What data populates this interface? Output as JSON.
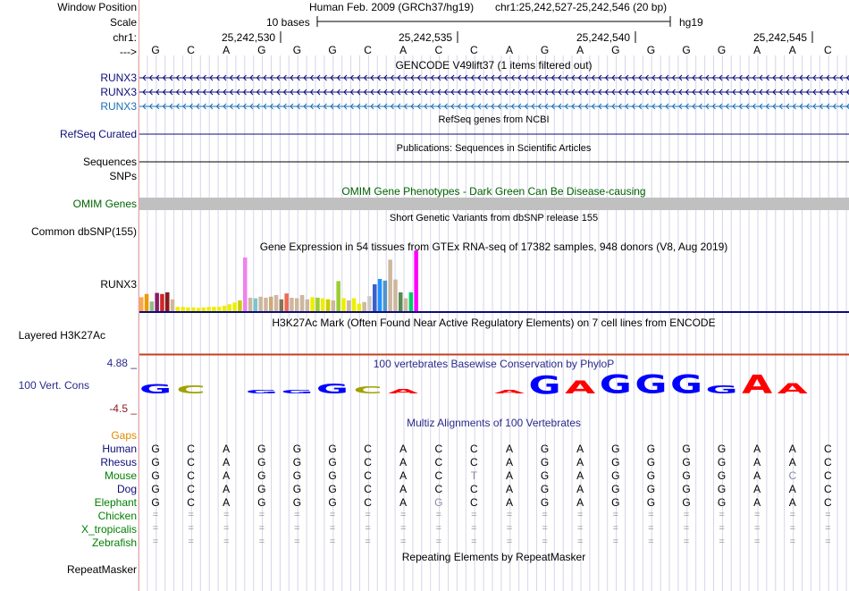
{
  "header": {
    "window_position_label": "Window Position",
    "scale_label": "Scale",
    "chrom_label": "chr1:",
    "strand_label": "--->",
    "assembly_text": "Human Feb. 2009 (GRCh37/hg19)",
    "position_text": "chr1:25,242,527-25,242,546 (20 bp)",
    "scale_text": "10 bases",
    "scale_db": "hg19",
    "ruler_ticks": [
      "25,242,530",
      "25,242,535",
      "25,242,540",
      "25,242,545"
    ]
  },
  "bases": [
    "G",
    "C",
    "A",
    "G",
    "G",
    "G",
    "C",
    "A",
    "C",
    "C",
    "A",
    "G",
    "A",
    "G",
    "G",
    "G",
    "G",
    "A",
    "A",
    "C"
  ],
  "tracks": {
    "gencode": {
      "title": "GENCODE V49lift37 (1 items filtered out)",
      "items": [
        "RUNX3",
        "RUNX3",
        "RUNX3"
      ],
      "colors": [
        "#0c0c78",
        "#0c0c78",
        "#1a6fb5"
      ]
    },
    "refseq": {
      "title": "RefSeq genes from NCBI",
      "label": "RefSeq Curated",
      "color": "#0c0c78"
    },
    "publications": {
      "title": "Publications: Sequences in Scientific Articles",
      "label": "Sequences"
    },
    "snps": {
      "label": "SNPs"
    },
    "omim": {
      "title": "OMIM Gene Phenotypes - Dark Green Can Be Disease-causing",
      "label": "OMIM Genes",
      "color": "#006400"
    },
    "dbsnp": {
      "title": "Short Genetic Variants from dbSNP release 155",
      "label": "Common dbSNP(155)"
    },
    "gtex": {
      "title": "Gene Expression in 54 tissues from GTEx RNA-seq of 17382 samples, 948 donors (V8, Aug 2019)",
      "label": "RUNX3",
      "values": [
        0.26,
        0.32,
        0.18,
        0.34,
        0.32,
        0.35,
        0.22,
        0.08,
        0.08,
        0.07,
        0.07,
        0.06,
        0.07,
        0.08,
        0.08,
        0.08,
        0.1,
        0.13,
        0.16,
        0.2,
        1.0,
        0.25,
        0.24,
        0.27,
        0.25,
        0.27,
        0.3,
        0.22,
        0.33,
        0.25,
        0.24,
        0.3,
        0.22,
        0.26,
        0.25,
        0.24,
        0.22,
        0.2,
        0.56,
        0.24,
        0.2,
        0.24,
        0.14,
        0.17,
        0.28,
        0.5,
        0.6,
        0.57,
        0.96,
        0.59,
        0.35,
        0.24,
        0.35,
        1.13
      ],
      "colors": [
        "#ffa54f",
        "#ee9a00",
        "#8fbc8f",
        "#8b1c62",
        "#cd2626",
        "#8b1a1a",
        "#cdb79e",
        "#eeee00",
        "#eeee00",
        "#eeee00",
        "#eeee00",
        "#eeee00",
        "#eeee00",
        "#eeee00",
        "#eeee00",
        "#eeee00",
        "#eeee00",
        "#eeee00",
        "#eeee00",
        "#cdcd00",
        "#ee82ee",
        "#cdb79e",
        "#7ac5cd",
        "#cdb79e",
        "#cdb79e",
        "#cdaa7d",
        "#cdb79e",
        "#8b7355",
        "#ee6a50",
        "#cdb79e",
        "#cdb79e",
        "#cdb79e",
        "#cdb79e",
        "#eeee00",
        "#9acd32",
        "#eeee00",
        "#cdcd00",
        "#cdb79e",
        "#9acd32",
        "#eeee00",
        "#cdb79e",
        "#eeee00",
        "#eeee00",
        "#cdb79e",
        "#cdc9c9",
        "#3a5fcd",
        "#1e90ff",
        "#4f94cd",
        "#cdb79e",
        "#cdb79e",
        "#548b54",
        "#cdb79e",
        "#00cd66",
        "#ff00ff"
      ]
    },
    "h3k27ac": {
      "title": "H3K27Ac Mark (Often Found Near Active Regulatory Elements) on 7 cell lines from ENCODE",
      "label": "Layered H3K27Ac"
    },
    "conservation": {
      "title": "100 vertebrates Basewise Conservation by PhyloP",
      "label": "100 Vert. Cons",
      "ymax": "4.88 _",
      "ymin": "-4.5 _",
      "letters": [
        "G",
        "C",
        "",
        "G",
        "G",
        "G",
        "C",
        "A",
        "",
        "",
        "A",
        "G",
        "A",
        "G",
        "G",
        "G",
        "G",
        "A",
        "A",
        ""
      ],
      "sizes": [
        0.35,
        0.3,
        0,
        0.12,
        0.14,
        0.37,
        0.27,
        0.17,
        0,
        0,
        0.12,
        0.7,
        0.48,
        0.72,
        0.72,
        0.72,
        0.32,
        0.72,
        0.4,
        0
      ],
      "colors": {
        "A": "#ff0000",
        "C": "#a1a100",
        "G": "#0000ff",
        "T": "#008000"
      }
    },
    "multiz": {
      "title": "Multiz Alignments of 100 Vertebrates",
      "gaps_label": "Gaps",
      "species": [
        {
          "name": "Human",
          "color": "#0c0c78",
          "seq": [
            "G",
            "C",
            "A",
            "G",
            "G",
            "G",
            "C",
            "A",
            "C",
            "C",
            "A",
            "G",
            "A",
            "G",
            "G",
            "G",
            "G",
            "A",
            "A",
            "C"
          ]
        },
        {
          "name": "Rhesus",
          "color": "#0c0c78",
          "seq": [
            "G",
            "C",
            "A",
            "G",
            "G",
            "G",
            "C",
            "A",
            "C",
            "C",
            "A",
            "G",
            "A",
            "G",
            "G",
            "G",
            "G",
            "A",
            "A",
            "C"
          ]
        },
        {
          "name": "Mouse",
          "color": "#008000",
          "seq": [
            "G",
            "C",
            "A",
            "G",
            "G",
            "G",
            "C",
            "A",
            "C",
            "T",
            "A",
            "G",
            "A",
            "G",
            "G",
            "G",
            "G",
            "A",
            "C",
            "C"
          ]
        },
        {
          "name": "Dog",
          "color": "#0c0c78",
          "seq": [
            "G",
            "C",
            "A",
            "G",
            "G",
            "G",
            "C",
            "A",
            "C",
            "C",
            "A",
            "G",
            "A",
            "G",
            "G",
            "G",
            "G",
            "A",
            "A",
            "C"
          ]
        },
        {
          "name": "Elephant",
          "color": "#008000",
          "seq": [
            "G",
            "C",
            "A",
            "G",
            "G",
            "G",
            "C",
            "A",
            "G",
            "C",
            "A",
            "G",
            "A",
            "G",
            "G",
            "G",
            "G",
            "A",
            "A",
            "C"
          ]
        },
        {
          "name": "Chicken",
          "color": "#008000",
          "seq": [
            "=",
            "=",
            "=",
            "=",
            "=",
            "=",
            "=",
            "=",
            "=",
            "=",
            "=",
            "=",
            "=",
            "=",
            "=",
            "=",
            "=",
            "=",
            "=",
            "="
          ]
        },
        {
          "name": "X_tropicalis",
          "color": "#008000",
          "seq": [
            "=",
            "=",
            "=",
            "=",
            "=",
            "=",
            "=",
            "=",
            "=",
            "=",
            "=",
            "=",
            "=",
            "=",
            "=",
            "=",
            "=",
            "=",
            "=",
            "="
          ]
        },
        {
          "name": "Zebrafish",
          "color": "#008000",
          "seq": [
            "=",
            "=",
            "=",
            "=",
            "=",
            "=",
            "=",
            "=",
            "=",
            "=",
            "=",
            "=",
            "=",
            "=",
            "=",
            "=",
            "=",
            "=",
            "=",
            "="
          ]
        }
      ],
      "mismatches": [
        [
          2,
          9
        ],
        [
          2,
          18
        ],
        [
          4,
          8
        ]
      ]
    },
    "repeatmasker": {
      "title": "Repeating Elements by RepeatMasker",
      "label": "RepeatMasker"
    }
  }
}
